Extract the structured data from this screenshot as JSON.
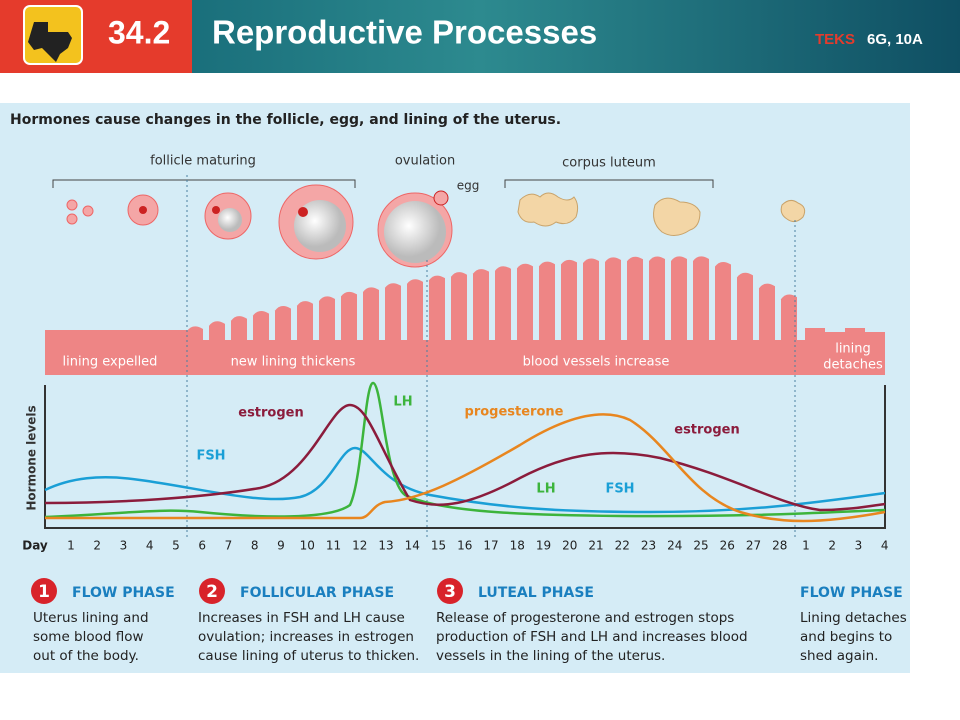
{
  "header": {
    "badge": "34.2",
    "title": "Reproductive Processes",
    "teks_prefix": "TEKS",
    "teks": "6G, 10A"
  },
  "figure": {
    "heading_before": "Hormones cause changes in the ",
    "heading_highlight": "follicle,",
    "heading_after": " egg, and lining of the uterus.",
    "stage_labels": [
      "follicle maturing",
      "ovulation",
      "egg",
      "corpus luteum"
    ],
    "lining_labels": [
      "lining expelled",
      "new lining thickens",
      "blood vessels increase",
      "lining",
      "detaches"
    ],
    "y_label": "Hormone levels",
    "curve_labels": [
      "estrogen",
      "LH",
      "FSH",
      "progesterone",
      "estrogen",
      "LH",
      "FSH"
    ],
    "day_label": "Day",
    "days": [
      1,
      2,
      3,
      4,
      5,
      6,
      7,
      8,
      9,
      10,
      11,
      12,
      13,
      14,
      15,
      16,
      17,
      18,
      19,
      20,
      21,
      22,
      23,
      24,
      25,
      26,
      27,
      28,
      1,
      2,
      3,
      4
    ],
    "phases": [
      {
        "number": "1",
        "title": "FLOW PHASE",
        "lines": [
          "Uterus lining and",
          "some blood flow",
          "out of the body."
        ]
      },
      {
        "number": "2",
        "title": "FOLLICULAR PHASE",
        "lines": [
          "Increases in FSH and LH cause",
          "ovulation; increases in estrogen",
          "cause lining of uterus to thicken."
        ]
      },
      {
        "number": "3",
        "title": "LUTEAL PHASE",
        "lines": [
          "Release of progesterone and estrogen stops",
          "production of FSH and LH and increases blood",
          "vessels in the lining of the uterus."
        ]
      },
      {
        "number": "",
        "title": "FLOW PHASE",
        "lines": [
          "Lining detaches",
          "and begins to",
          "shed again."
        ]
      }
    ]
  }
}
